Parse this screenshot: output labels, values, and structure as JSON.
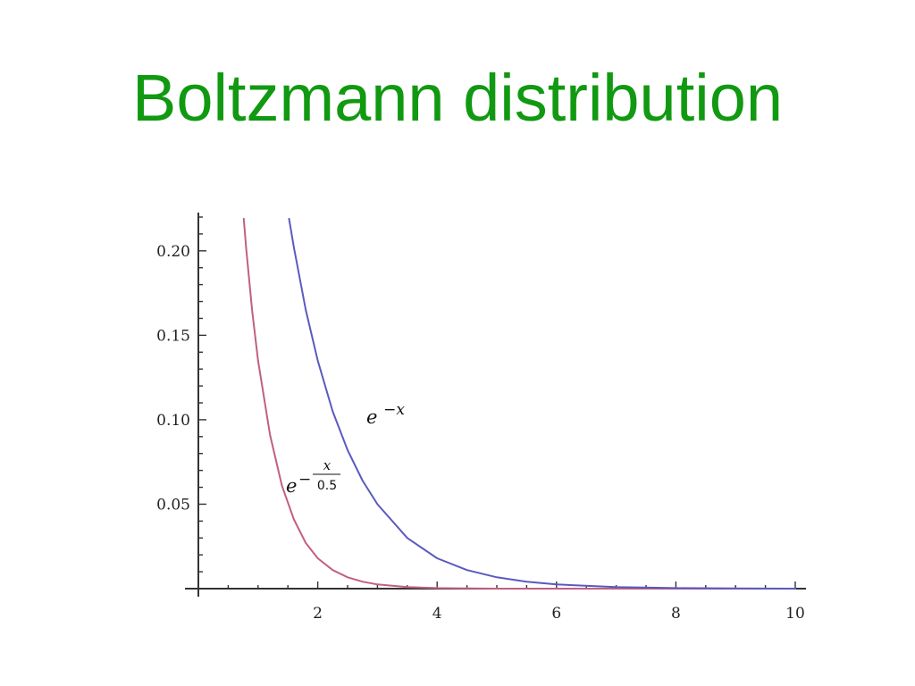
{
  "slide": {
    "title": "Boltzmann distribution"
  },
  "chart_data": {
    "type": "line",
    "title": "",
    "xlabel": "",
    "ylabel": "",
    "xlim": [
      0,
      10
    ],
    "ylim": [
      0,
      0.22
    ],
    "x_ticks": [
      2,
      4,
      6,
      8,
      10
    ],
    "x_tick_labels": [
      "2",
      "4",
      "6",
      "8",
      "10"
    ],
    "y_ticks": [
      0.05,
      0.1,
      0.15,
      0.2
    ],
    "y_tick_labels": [
      "0.05",
      "0.10",
      "0.15",
      "0.20"
    ],
    "grid": false,
    "series": [
      {
        "color": "#c06080",
        "x": [
          0.76,
          0.8,
          0.9,
          1.0,
          1.2,
          1.4,
          1.6,
          1.8,
          2.0,
          2.25,
          2.5,
          2.75,
          3.0,
          3.5,
          4.0,
          5.0,
          6.0,
          7.0,
          8.0,
          9.0,
          10.0
        ],
        "y": [
          0.219,
          0.202,
          0.165,
          0.135,
          0.091,
          0.061,
          0.041,
          0.027,
          0.018,
          0.011,
          0.0067,
          0.0041,
          0.0025,
          0.0009,
          0.0003,
          0.0,
          0.0,
          0.0,
          0.0,
          0.0,
          0.0
        ]
      },
      {
        "color": "#5a5abf",
        "x": [
          1.52,
          1.6,
          1.8,
          2.0,
          2.25,
          2.5,
          2.75,
          3.0,
          3.5,
          4.0,
          4.5,
          5.0,
          5.5,
          6.0,
          7.0,
          8.0,
          9.0,
          10.0
        ],
        "y": [
          0.219,
          0.202,
          0.165,
          0.135,
          0.105,
          0.082,
          0.064,
          0.05,
          0.03,
          0.018,
          0.011,
          0.0067,
          0.0041,
          0.0025,
          0.0009,
          0.0003,
          0.0001,
          0.0
        ]
      }
    ],
    "annotations": [
      {
        "base": "e",
        "exponent": "−x"
      },
      {
        "base": "e",
        "sign": "−",
        "numerator": "x",
        "denominator": "0.5"
      }
    ]
  }
}
